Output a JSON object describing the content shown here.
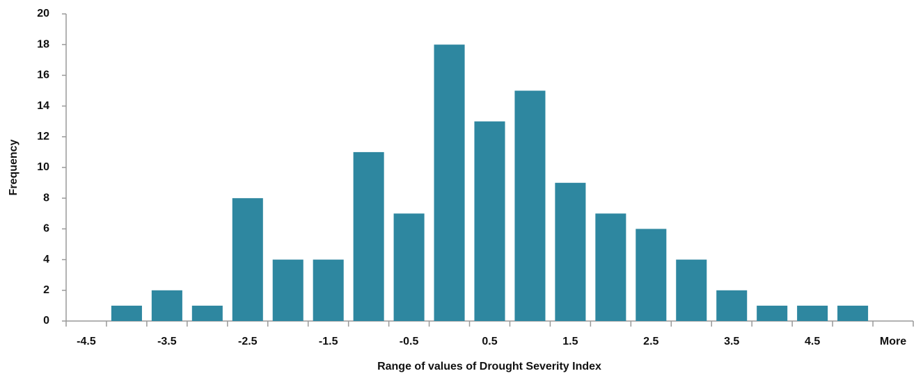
{
  "chart_data": {
    "type": "bar",
    "x_label": "Range of values of Drought Severity Index",
    "y_label": "Frequency",
    "categories": [
      "-4.5",
      null,
      "-3.5",
      null,
      "-2.5",
      null,
      "-1.5",
      null,
      "-0.5",
      null,
      "0.5",
      null,
      "1.5",
      null,
      "2.5",
      null,
      "3.5",
      null,
      "4.5",
      null,
      "More"
    ],
    "values": [
      0,
      1,
      2,
      1,
      8,
      4,
      4,
      11,
      7,
      18,
      13,
      15,
      9,
      7,
      6,
      4,
      2,
      1,
      1,
      1,
      0
    ],
    "color": "#2e87a0",
    "ylim": [
      0,
      20
    ],
    "yticks": [
      0,
      2,
      4,
      6,
      8,
      10,
      12,
      14,
      16,
      18,
      20
    ],
    "grid": false
  }
}
